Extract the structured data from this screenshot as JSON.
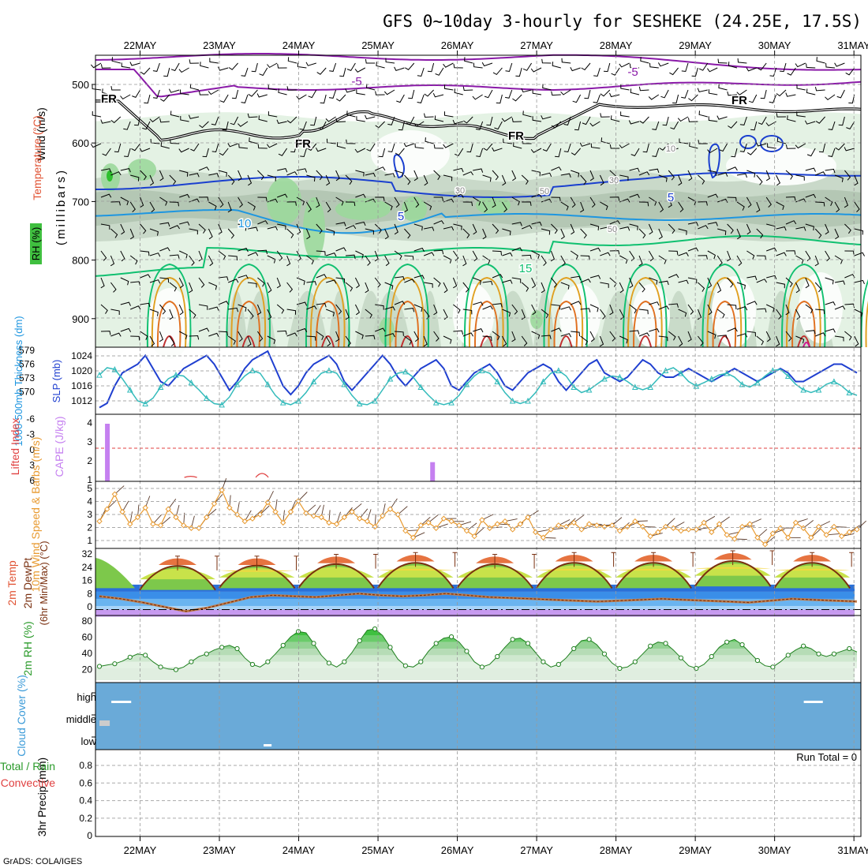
{
  "title": "GFS 0~10day 3-hourly for SESHEKE (24.25E, 17.5S)",
  "footer": "GrADS: COLA/IGES",
  "dates": [
    "22MAY",
    "23MAY",
    "24MAY",
    "25MAY",
    "26MAY",
    "27MAY",
    "28MAY",
    "29MAY",
    "30MAY",
    "31MAY"
  ],
  "colors": {
    "rh_fill": "#9bd89b",
    "slp_line": "#1f3fd0",
    "thk_line": "#33bbbb",
    "cape_bar": "#c580f0",
    "wind_speed": "#e89a30",
    "temp_fill": "#7dc84b",
    "rh2m_fill": "#3fc040",
    "cloud_bg": "#6aaad8",
    "precip_run": "#000000"
  },
  "upper_panel": {
    "labels": {
      "wind": "Wind (m/s)",
      "temp": "Temperature (°C)",
      "rh": "RH (%)",
      "pressure": "(millibars)"
    },
    "yticks": [
      "500",
      "600",
      "700",
      "800",
      "900"
    ],
    "contour_labels": [
      "-5",
      "-5",
      "FR",
      "FR",
      "FR",
      "FR",
      "10",
      "5",
      "5",
      "10",
      "15",
      "30",
      "50",
      "50",
      "30",
      "10"
    ]
  },
  "chart_data": [
    {
      "type": "line",
      "title": "SLP / 1000-500mb Thickness",
      "ylabel_left": "1000-500mb Thickness (dm)",
      "ylabel_right": "SLP (mb)",
      "yticks_left": [
        "579",
        "576",
        "573",
        "570"
      ],
      "yticks_right": [
        "1024",
        "1020",
        "1016",
        "1012"
      ],
      "ylim_slp": [
        1011,
        1025
      ],
      "series": [
        {
          "name": "SLP (mb)",
          "values": [
            1012,
            1013,
            1017,
            1020,
            1021,
            1022,
            1024,
            1021,
            1018,
            1017,
            1019,
            1021,
            1022,
            1023,
            1024,
            1022,
            1019,
            1016,
            1018,
            1021,
            1023,
            1024,
            1025,
            1021,
            1017,
            1015,
            1017,
            1020,
            1022,
            1023,
            1024,
            1022,
            1018,
            1016,
            1018,
            1020,
            1022,
            1024,
            1022,
            1019,
            1017,
            1019,
            1021,
            1022,
            1023,
            1021,
            1017,
            1016,
            1018,
            1020,
            1021,
            1022,
            1020,
            1017,
            1016,
            1018,
            1020,
            1021,
            1022,
            1021,
            1018,
            1016,
            1018,
            1020,
            1022,
            1023,
            1020,
            1019,
            1018,
            1019,
            1021,
            1023,
            1022,
            1020,
            1019,
            1019,
            1020,
            1021,
            1020,
            1019,
            1018,
            1019,
            1020,
            1021,
            1020,
            1019,
            1018,
            1019,
            1020,
            1021,
            1020,
            1018,
            1018,
            1019,
            1020,
            1021,
            1022,
            1022,
            1021,
            1020
          ]
        },
        {
          "name": "Thickness (dm)",
          "values": [
            575.2,
            576.5,
            576.2,
            574.5,
            572.5,
            570.5,
            570.0,
            571.0,
            573.0,
            574.5,
            575.2,
            575.0,
            573.8,
            572.5,
            571.0,
            570.0,
            569.8,
            571.2,
            573.5,
            575.0,
            576.0,
            575.5,
            573.5,
            571.5,
            570.2,
            569.8,
            570.5,
            572.0,
            574.0,
            575.5,
            576.0,
            575.5,
            573.5,
            571.5,
            570.0,
            569.8,
            570.5,
            572.5,
            574.5,
            575.5,
            575.8,
            574.8,
            573.0,
            571.5,
            570.2,
            569.8,
            570.2,
            571.5,
            573.5,
            575.0,
            576.0,
            575.5,
            574.0,
            572.0,
            570.5,
            570.0,
            570.5,
            572.0,
            574.0,
            575.5,
            576.0,
            575.0,
            573.0,
            572.0,
            572.5,
            573.5,
            574.5,
            575.0,
            574.8,
            574.0,
            573.0,
            572.5,
            573.0,
            574.5,
            576.0,
            576.5,
            575.5,
            574.0,
            573.2,
            573.8,
            574.5,
            575.2,
            575.5,
            574.8,
            573.5,
            573.0,
            573.8,
            575.0,
            576.0,
            576.2,
            575.0,
            573.5,
            572.5,
            572.0,
            572.5,
            573.5,
            574.0,
            573.2,
            572.0,
            571.5
          ]
        }
      ]
    },
    {
      "type": "bar",
      "title": "CAPE / Lifted Index",
      "ylabel_left": "Lifted Index",
      "ylabel_right": "CAPE (J/kg)",
      "yticks_left": [
        "-6",
        "-3",
        "0",
        "3",
        "6"
      ],
      "yticks_right": [
        "4",
        "3",
        "2",
        "1"
      ],
      "bars": [
        {
          "day": 0.15,
          "value": 4.0
        },
        {
          "day": 4.25,
          "value": 2.0
        }
      ],
      "lifted_index_bumps": [
        {
          "day": 1.2,
          "value": 5.3
        },
        {
          "day": 2.1,
          "value": 3.5
        }
      ]
    },
    {
      "type": "line",
      "title": "10m Wind Speed & Barbs",
      "ylabel": "10m Wind Speed & Barbs (m/s)",
      "yticks": [
        "5",
        "4",
        "3",
        "2",
        "1"
      ],
      "ylim": [
        0.6,
        5.2
      ],
      "values": [
        2.6,
        3.5,
        4.6,
        3.3,
        2.4,
        2.9,
        3.6,
        2.4,
        2.3,
        3.5,
        2.9,
        2.3,
        2.1,
        2.1,
        2.9,
        3.9,
        4.9,
        3.6,
        3.1,
        2.6,
        2.8,
        3.1,
        4.0,
        3.3,
        2.5,
        3.3,
        4.1,
        3.2,
        3.0,
        2.9,
        2.5,
        2.4,
        2.9,
        3.3,
        2.8,
        2.6,
        2.2,
        3.0,
        3.5,
        3.1,
        1.9,
        1.4,
        2.3,
        2.5,
        2.1,
        2.8,
        2.6,
        2.3,
        1.9,
        1.5,
        2.7,
        2.1,
        2.4,
        2.6,
        2.0,
        2.4,
        2.9,
        1.8,
        1.4,
        2.0,
        2.3,
        2.2,
        2.5,
        2.0,
        2.4,
        2.3,
        2.2,
        2.3,
        1.9,
        2.2,
        2.6,
        2.2,
        1.5,
        1.8,
        2.2,
        2.1,
        1.9,
        2.0,
        2.0,
        2.5,
        1.8,
        2.4,
        1.6,
        1.3,
        2.2,
        2.4,
        1.4,
        0.9,
        1.7,
        2.1,
        1.4,
        2.5,
        2.1,
        1.4,
        2.2,
        1.6,
        2.2,
        1.5,
        1.8,
        2.0
      ]
    },
    {
      "type": "area",
      "title": "2m Temp / 2m DewPt",
      "ylabel": "2m Temp 2m DewPt (6hr Min/Max) (°C)",
      "yticks": [
        "32",
        "24",
        "16",
        "8",
        "0"
      ],
      "ylim": [
        -2,
        33
      ],
      "temp_max": [
        28,
        28,
        29,
        30,
        29,
        30,
        30,
        31,
        30
      ],
      "temp_min": [
        11,
        12,
        12,
        12,
        12,
        12,
        12,
        13,
        12
      ],
      "dewpoint": [
        7.5,
        6.0,
        4.0,
        1.5,
        -1.0,
        1.0,
        4.0,
        7.0,
        8.0,
        7.5,
        7.0,
        8.0,
        9.0,
        8.0,
        7.5,
        8.0,
        9.0,
        8.0,
        7.0,
        6.5,
        6.0,
        5.5,
        5.0,
        4.5,
        5.0,
        5.5,
        6.0,
        5.5,
        5.0,
        4.5,
        4.0,
        5.0,
        6.0,
        5.5,
        5.0,
        4.5
      ]
    },
    {
      "type": "area",
      "title": "2m RH",
      "ylabel": "2m RH (%)",
      "yticks": [
        "80",
        "60",
        "40",
        "20"
      ],
      "ylim": [
        10,
        85
      ],
      "values": [
        23,
        25,
        27,
        31,
        37,
        42,
        40,
        30,
        22,
        19,
        18,
        22,
        30,
        38,
        42,
        48,
        52,
        55,
        50,
        36,
        26,
        22,
        30,
        42,
        55,
        68,
        76,
        74,
        58,
        40,
        28,
        22,
        30,
        44,
        62,
        78,
        80,
        70,
        52,
        34,
        24,
        22,
        30,
        46,
        58,
        66,
        68,
        60,
        46,
        30,
        22,
        26,
        38,
        52,
        64,
        66,
        58,
        44,
        30,
        22,
        26,
        36,
        50,
        62,
        64,
        56,
        42,
        28,
        20,
        22,
        30,
        42,
        54,
        60,
        58,
        48,
        36,
        24,
        20,
        26,
        38,
        52,
        60,
        64,
        56,
        44,
        32,
        24,
        22,
        30,
        40,
        48,
        54,
        50,
        42,
        38,
        42,
        46,
        50,
        45
      ]
    },
    {
      "type": "bar",
      "title": "Cloud Cover",
      "ylabel": "Cloud Cover (%)",
      "levels": [
        "high",
        "middle",
        "low"
      ],
      "segments": [
        {
          "level": "high",
          "start_day": 0.2,
          "end_day": 0.45
        },
        {
          "level": "high",
          "start_day": 8.93,
          "end_day": 9.17
        },
        {
          "level": "middle",
          "start_day": 0.05,
          "end_day": 0.18
        },
        {
          "level": "low",
          "start_day": 2.12,
          "end_day": 2.22
        }
      ]
    },
    {
      "type": "bar",
      "title": "3hr Precip",
      "ylabel_total": "Total / Rain",
      "ylabel_conv": "Convective",
      "ylabel": "3hr Precip (mm)",
      "yticks": [
        "0.8",
        "0.6",
        "0.4",
        "0.2",
        "0"
      ],
      "ylim": [
        0,
        1
      ],
      "values": [],
      "annotation": "Run Total = 0"
    }
  ]
}
